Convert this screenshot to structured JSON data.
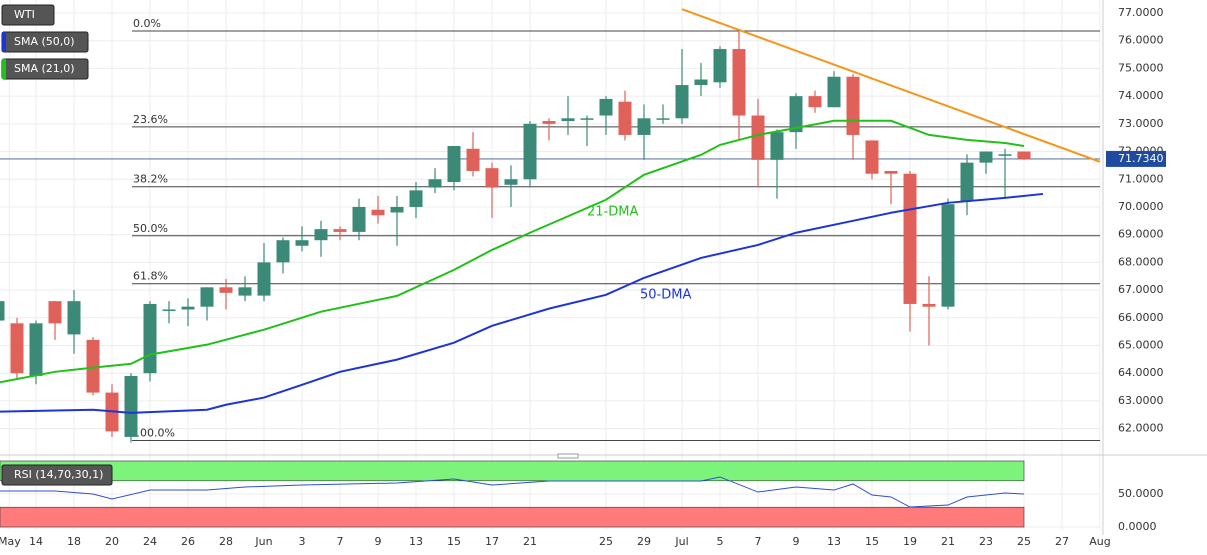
{
  "chart_data": {
    "type": "candlestick",
    "title": "WTI",
    "open": [
      65.9,
      65.8,
      63.9,
      66.6,
      65.4,
      65.2,
      63.3,
      61.7,
      64.0,
      66.3,
      66.3,
      66.4,
      67.1,
      66.8,
      66.8,
      68.0,
      68.6,
      68.8,
      69.2,
      69.1,
      69.9,
      69.8,
      70.0,
      70.7,
      70.9,
      72.1,
      71.4,
      70.8,
      71.0,
      73.1,
      73.1,
      73.2,
      73.3,
      73.8,
      72.6,
      73.2,
      73.2,
      74.4,
      74.5,
      75.7,
      73.3,
      71.7,
      72.7,
      74.0,
      73.6,
      74.7,
      72.4,
      71.3,
      71.2,
      66.5,
      66.4,
      70.2,
      71.6,
      71.9,
      72.0
    ],
    "high": [
      66.7,
      66.0,
      65.9,
      66.6,
      67.0,
      65.3,
      63.6,
      64.0,
      66.6,
      66.6,
      66.7,
      67.1,
      67.4,
      67.5,
      68.7,
      68.9,
      69.3,
      69.5,
      69.3,
      70.3,
      70.4,
      70.4,
      70.9,
      71.4,
      72.2,
      72.7,
      71.6,
      71.5,
      73.1,
      73.2,
      74.0,
      73.3,
      74.0,
      74.2,
      73.7,
      73.7,
      75.7,
      75.2,
      75.8,
      76.4,
      73.9,
      72.8,
      74.1,
      74.2,
      74.9,
      74.8,
      72.4,
      71.3,
      71.3,
      67.5,
      70.3,
      71.9,
      72.0,
      72.1,
      72.0
    ],
    "low": [
      65.5,
      63.8,
      63.6,
      65.2,
      64.7,
      63.2,
      61.7,
      61.5,
      63.7,
      65.8,
      65.7,
      65.9,
      66.3,
      66.6,
      66.6,
      67.6,
      68.4,
      68.2,
      68.8,
      68.8,
      69.4,
      68.6,
      69.6,
      70.5,
      70.6,
      71.1,
      69.6,
      70.0,
      70.7,
      72.4,
      72.6,
      72.2,
      72.6,
      72.4,
      71.7,
      73.0,
      73.0,
      74.0,
      74.3,
      72.4,
      70.7,
      70.3,
      72.1,
      73.4,
      73.6,
      71.7,
      71.0,
      70.1,
      65.5,
      65.0,
      66.3,
      69.7,
      71.2,
      70.3,
      71.7
    ],
    "close": [
      66.6,
      64.0,
      65.8,
      65.8,
      66.6,
      63.3,
      61.9,
      63.9,
      66.5,
      66.3,
      66.4,
      67.1,
      66.9,
      67.1,
      68.0,
      68.8,
      68.8,
      69.2,
      69.1,
      70.0,
      69.7,
      70.0,
      70.6,
      71.0,
      72.2,
      71.3,
      70.7,
      71.0,
      73.0,
      73.0,
      73.2,
      73.2,
      73.9,
      72.6,
      73.2,
      73.2,
      74.4,
      74.6,
      75.7,
      73.3,
      71.7,
      72.7,
      74.0,
      73.6,
      74.7,
      72.6,
      71.2,
      71.2,
      66.5,
      66.4,
      70.1,
      71.6,
      72.0,
      71.9,
      71.734
    ],
    "up_color": "#3b8a78",
    "down_color": "#e0605a",
    "series": [
      {
        "name": "SMA (50,0)",
        "label": "50-DMA",
        "color": "#1e35d6",
        "x": [
          0,
          5,
          7,
          11,
          12,
          14,
          16,
          18,
          21,
          24,
          26,
          29,
          32,
          34,
          37,
          40,
          42,
          45,
          47,
          50,
          53,
          55
        ],
        "values": [
          62.61,
          62.68,
          62.57,
          62.68,
          62.86,
          63.12,
          63.58,
          64.05,
          64.49,
          65.1,
          65.71,
          66.33,
          66.83,
          67.44,
          68.16,
          68.63,
          69.07,
          69.5,
          69.79,
          70.15,
          70.33,
          70.47
        ]
      },
      {
        "name": "SMA (21,0)",
        "label": "21-DMA",
        "color": "#22c01a",
        "x": [
          0,
          3,
          5,
          7,
          8,
          11,
          14,
          17,
          21,
          24,
          26,
          28,
          32,
          34,
          37,
          38,
          40,
          42,
          44,
          47,
          49,
          51,
          53,
          54
        ],
        "values": [
          63.66,
          64.05,
          64.2,
          64.34,
          64.67,
          65.03,
          65.57,
          66.22,
          66.79,
          67.73,
          68.45,
          69.07,
          70.26,
          71.16,
          71.88,
          72.24,
          72.6,
          72.85,
          73.11,
          73.11,
          72.6,
          72.42,
          72.31,
          72.2
        ]
      }
    ],
    "trendline": {
      "color": "#f5961a",
      "x": [
        36,
        58
      ],
      "values": [
        77.14,
        71.63
      ]
    },
    "fib_levels": [
      {
        "label": "0.0%",
        "price": 76.35
      },
      {
        "label": "23.6%",
        "price": 72.89
      },
      {
        "label": "38.2%",
        "price": 70.73
      },
      {
        "label": "50.0%",
        "price": 68.96
      },
      {
        "label": "61.8%",
        "price": 67.23
      },
      {
        "label": "100.0%",
        "price": 61.57
      }
    ],
    "last_price": {
      "value": 71.734,
      "label": "71.7340"
    },
    "xlim": [
      0,
      58
    ],
    "ylim": [
      61.3,
      77.47
    ],
    "yticks": [
      {
        "value": 77,
        "label": "77.0000"
      },
      {
        "value": 76,
        "label": "76.0000"
      },
      {
        "value": 75,
        "label": "75.0000"
      },
      {
        "value": 74,
        "label": "74.0000"
      },
      {
        "value": 73,
        "label": "73.0000"
      },
      {
        "value": 72,
        "label": "72.0000"
      },
      {
        "value": 71,
        "label": "71.0000"
      },
      {
        "value": 70,
        "label": "70.0000"
      },
      {
        "value": 69,
        "label": "69.0000"
      },
      {
        "value": 68,
        "label": "68.0000"
      },
      {
        "value": 67,
        "label": "67.0000"
      },
      {
        "value": 66,
        "label": "66.0000"
      },
      {
        "value": 65,
        "label": "65.0000"
      },
      {
        "value": 64,
        "label": "64.0000"
      },
      {
        "value": 63,
        "label": "63.0000"
      },
      {
        "value": 62,
        "label": "62.0000"
      }
    ],
    "xticks": [
      {
        "value": 0.6,
        "label": "May"
      },
      {
        "value": 2,
        "label": "14"
      },
      {
        "value": 4,
        "label": "18"
      },
      {
        "value": 6,
        "label": "20"
      },
      {
        "value": 8,
        "label": "24"
      },
      {
        "value": 10,
        "label": "26"
      },
      {
        "value": 12,
        "label": "28"
      },
      {
        "value": 14,
        "label": "Jun"
      },
      {
        "value": 16,
        "label": "3"
      },
      {
        "value": 18,
        "label": "7"
      },
      {
        "value": 20,
        "label": "9"
      },
      {
        "value": 22,
        "label": "13"
      },
      {
        "value": 24,
        "label": "15"
      },
      {
        "value": 26,
        "label": "17"
      },
      {
        "value": 28,
        "label": "21"
      },
      {
        "value": 32,
        "label": "25"
      },
      {
        "value": 34,
        "label": "29"
      },
      {
        "value": 36,
        "label": "Jul"
      },
      {
        "value": 38,
        "label": "5"
      },
      {
        "value": 40,
        "label": "7"
      },
      {
        "value": 42,
        "label": "9"
      },
      {
        "value": 44,
        "label": "13"
      },
      {
        "value": 46,
        "label": "15"
      },
      {
        "value": 48,
        "label": "19"
      },
      {
        "value": 50,
        "label": "21"
      },
      {
        "value": 52,
        "label": "23"
      },
      {
        "value": 54,
        "label": "25"
      },
      {
        "value": 56,
        "label": "27"
      },
      {
        "value": 58,
        "label": "Aug"
      }
    ],
    "rsi": {
      "name": "RSI (14,70,30,1)",
      "color": "#2f4fd0",
      "x": [
        0,
        3,
        5,
        6,
        8,
        11,
        13,
        16,
        21,
        24,
        26,
        29,
        37,
        38,
        40,
        42,
        44,
        45,
        46,
        47,
        48,
        50,
        51,
        53,
        54
      ],
      "values": [
        54.5,
        54.5,
        50,
        42.4,
        56,
        56,
        60.6,
        63.6,
        66.7,
        72.7,
        63.6,
        69.7,
        69.7,
        75.8,
        53,
        60.6,
        56,
        65.2,
        48.5,
        45.5,
        30.3,
        33.3,
        45.5,
        51.5,
        50
      ],
      "upper_band": [
        70,
        100
      ],
      "upper_color": "#7cf47c",
      "lower_band": [
        0,
        30
      ],
      "lower_color": "#ff7b7b",
      "ylim": [
        -4.5,
        101.5
      ],
      "yticks": [
        {
          "value": 50,
          "label": "50.0000"
        },
        {
          "value": 0,
          "label": "0.0000"
        }
      ]
    }
  }
}
